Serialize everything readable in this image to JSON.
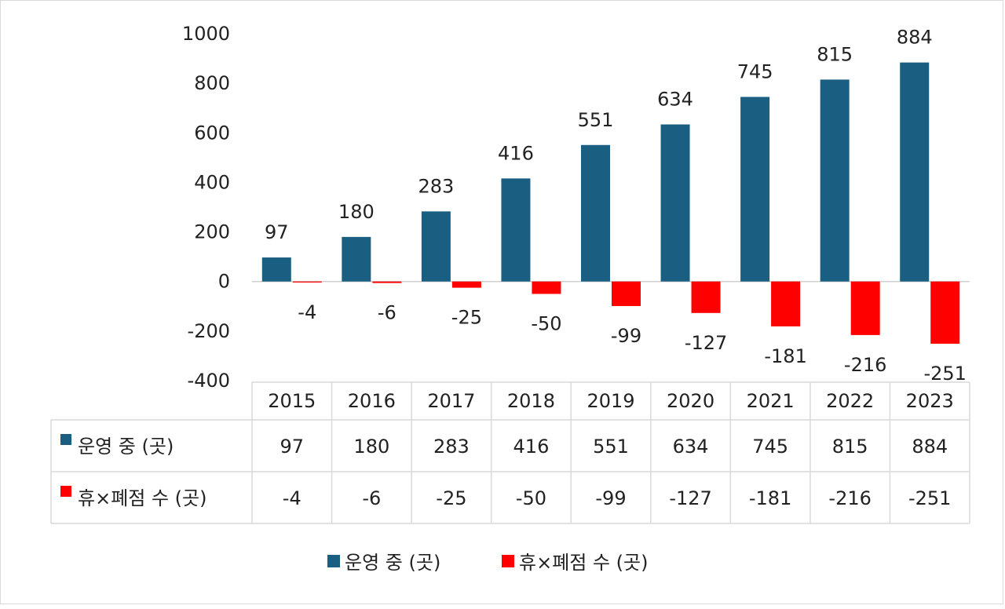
{
  "chart_data": {
    "type": "bar",
    "categories": [
      "2015",
      "2016",
      "2017",
      "2018",
      "2019",
      "2020",
      "2021",
      "2022",
      "2023"
    ],
    "series": [
      {
        "name": "운영 중 (곳)",
        "color": "#1a5e82",
        "values": [
          97,
          180,
          283,
          416,
          551,
          634,
          745,
          815,
          884
        ]
      },
      {
        "name": "휴×폐점 수 (곳)",
        "color": "#ff0000",
        "values": [
          -4,
          -6,
          -25,
          -50,
          -99,
          -127,
          -181,
          -216,
          -251
        ]
      }
    ],
    "yticks": [
      "1000",
      "800",
      "600",
      "400",
      "200",
      "0",
      "-200",
      "-400"
    ],
    "ylim": [
      -400,
      1000
    ],
    "data_table": true,
    "legend_position": "bottom",
    "grid": false
  }
}
